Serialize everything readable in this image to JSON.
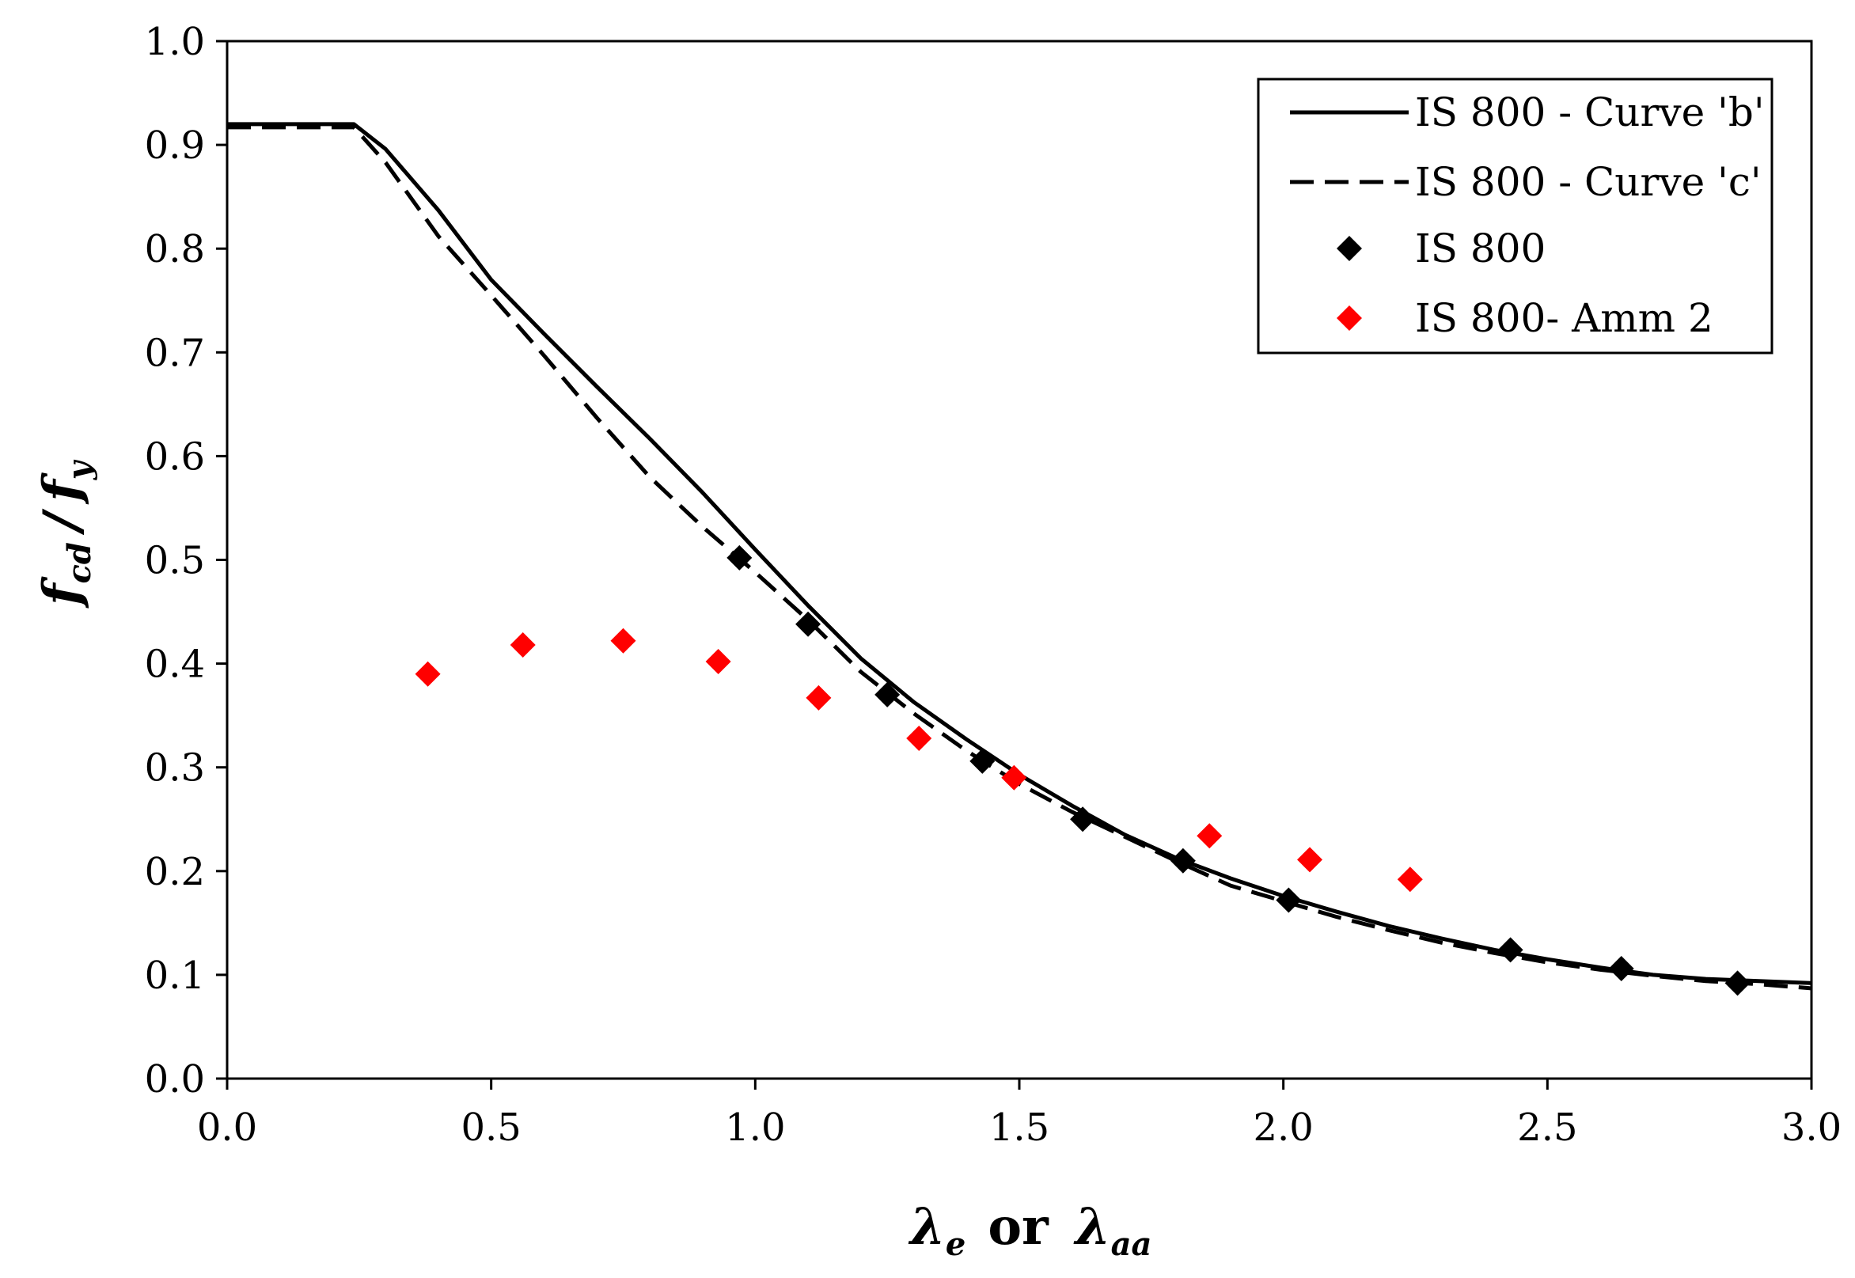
{
  "chart_data": {
    "type": "line",
    "title": "",
    "xlabel": {
      "lambda_e_symbol": "λ",
      "lambda_e_sub": "e",
      "or_text": "or",
      "lambda_aa_symbol": "λ",
      "lambda_aa_sub": "aa"
    },
    "ylabel": {
      "f_cd_symbol": "f",
      "f_cd_sub": "cd",
      "slash": "/",
      "f_y_symbol": "f",
      "f_y_sub": "y"
    },
    "xlim": [
      0,
      3
    ],
    "ylim": [
      0,
      1
    ],
    "x_ticks": [
      "0.0",
      "0.5",
      "1.0",
      "1.5",
      "2.0",
      "2.5",
      "3.0"
    ],
    "y_ticks": [
      "0.0",
      "0.1",
      "0.2",
      "0.3",
      "0.4",
      "0.5",
      "0.6",
      "0.7",
      "0.8",
      "0.9",
      "1.0"
    ],
    "grid": false,
    "legend_position": "top-right",
    "series": [
      {
        "name": "IS 800 - Curve 'b'",
        "kind": "line",
        "style": "solid",
        "color": "#000000",
        "x": [
          0,
          0.1,
          0.2,
          0.24,
          0.3,
          0.4,
          0.5,
          0.6,
          0.7,
          0.8,
          0.9,
          1.0,
          1.1,
          1.2,
          1.3,
          1.4,
          1.5,
          1.6,
          1.7,
          1.8,
          1.9,
          2.0,
          2.1,
          2.2,
          2.3,
          2.4,
          2.5,
          2.6,
          2.7,
          2.8,
          2.9,
          3.0
        ],
        "y": [
          0.92,
          0.92,
          0.92,
          0.92,
          0.896,
          0.837,
          0.77,
          0.718,
          0.667,
          0.617,
          0.565,
          0.51,
          0.456,
          0.405,
          0.363,
          0.327,
          0.293,
          0.263,
          0.235,
          0.212,
          0.193,
          0.176,
          0.161,
          0.147,
          0.135,
          0.124,
          0.115,
          0.107,
          0.1,
          0.096,
          0.094,
          0.092
        ]
      },
      {
        "name": "IS 800 - Curve 'c'",
        "kind": "line",
        "style": "dashed",
        "color": "#000000",
        "x": [
          0,
          0.1,
          0.2,
          0.24,
          0.3,
          0.4,
          0.5,
          0.6,
          0.7,
          0.8,
          0.9,
          1.0,
          1.1,
          1.2,
          1.3,
          1.4,
          1.5,
          1.6,
          1.7,
          1.8,
          1.9,
          2.0,
          2.1,
          2.2,
          2.3,
          2.4,
          2.5,
          2.6,
          2.7,
          2.8,
          2.9,
          3.0
        ],
        "y": [
          0.917,
          0.917,
          0.917,
          0.917,
          0.883,
          0.812,
          0.755,
          0.697,
          0.637,
          0.58,
          0.532,
          0.488,
          0.442,
          0.392,
          0.352,
          0.316,
          0.284,
          0.257,
          0.233,
          0.209,
          0.186,
          0.171,
          0.156,
          0.143,
          0.131,
          0.121,
          0.112,
          0.105,
          0.099,
          0.094,
          0.091,
          0.087
        ]
      },
      {
        "name": "IS 800",
        "kind": "scatter",
        "marker": "diamond",
        "color": "#000000",
        "x": [
          0.97,
          1.1,
          1.25,
          1.43,
          1.62,
          1.81,
          2.01,
          2.43,
          2.64,
          2.86
        ],
        "y": [
          0.502,
          0.438,
          0.37,
          0.306,
          0.25,
          0.21,
          0.172,
          0.124,
          0.106,
          0.092
        ]
      },
      {
        "name": "IS 800- Amm 2",
        "kind": "scatter",
        "marker": "diamond",
        "color": "#ff0000",
        "x": [
          0.38,
          0.56,
          0.75,
          0.93,
          1.12,
          1.31,
          1.49,
          1.86,
          2.05,
          2.24
        ],
        "y": [
          0.39,
          0.418,
          0.422,
          0.402,
          0.367,
          0.328,
          0.29,
          0.234,
          0.211,
          0.192
        ]
      }
    ]
  }
}
